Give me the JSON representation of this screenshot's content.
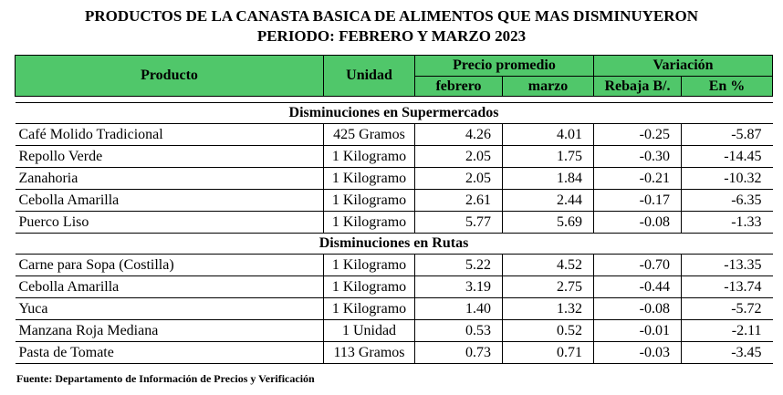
{
  "title": {
    "line1": "PRODUCTOS DE LA CANASTA BASICA DE ALIMENTOS QUE MAS DISMINUYERON",
    "line2": "PERIODO: FEBRERO  Y MARZO 2023"
  },
  "header": {
    "producto": "Producto",
    "unidad": "Unidad",
    "precio_promedio": "Precio promedio",
    "variacion": "Variación",
    "febrero": "febrero",
    "marzo": "marzo",
    "rebaja": "Rebaja B/.",
    "en_pct": "En %"
  },
  "sections": [
    {
      "title": "Disminuciones en Supermercados",
      "rows": [
        {
          "producto": "Café Molido Tradicional",
          "unidad": "425 Gramos",
          "febrero": "4.26",
          "marzo": "4.01",
          "rebaja": "-0.25",
          "pct": "-5.87"
        },
        {
          "producto": "Repollo Verde",
          "unidad": "1 Kilogramo",
          "febrero": "2.05",
          "marzo": "1.75",
          "rebaja": "-0.30",
          "pct": "-14.45"
        },
        {
          "producto": "Zanahoria",
          "unidad": "1 Kilogramo",
          "febrero": "2.05",
          "marzo": "1.84",
          "rebaja": "-0.21",
          "pct": "-10.32"
        },
        {
          "producto": "Cebolla Amarilla",
          "unidad": "1 Kilogramo",
          "febrero": "2.61",
          "marzo": "2.44",
          "rebaja": "-0.17",
          "pct": "-6.35"
        },
        {
          "producto": "Puerco Liso",
          "unidad": "1 Kilogramo",
          "febrero": "5.77",
          "marzo": "5.69",
          "rebaja": "-0.08",
          "pct": "-1.33"
        }
      ]
    },
    {
      "title": "Disminuciones en Rutas",
      "rows": [
        {
          "producto": "Carne para Sopa (Costilla)",
          "unidad": "1 Kilogramo",
          "febrero": "5.22",
          "marzo": "4.52",
          "rebaja": "-0.70",
          "pct": "-13.35"
        },
        {
          "producto": "Cebolla Amarilla",
          "unidad": "1 Kilogramo",
          "febrero": "3.19",
          "marzo": "2.75",
          "rebaja": "-0.44",
          "pct": "-13.74"
        },
        {
          "producto": "Yuca",
          "unidad": "1 Kilogramo",
          "febrero": "1.40",
          "marzo": "1.32",
          "rebaja": "-0.08",
          "pct": "-5.72"
        },
        {
          "producto": "Manzana Roja Mediana",
          "unidad": "1 Unidad",
          "febrero": "0.53",
          "marzo": "0.52",
          "rebaja": "-0.01",
          "pct": "-2.11"
        },
        {
          "producto": "Pasta de Tomate",
          "unidad": "113 Gramos",
          "febrero": "0.73",
          "marzo": "0.71",
          "rebaja": "-0.03",
          "pct": "-3.45"
        }
      ]
    }
  ],
  "source": "Fuente:  Departamento de Información  de Precios y Verificación",
  "colors": {
    "header_fill": "#50c76a"
  }
}
